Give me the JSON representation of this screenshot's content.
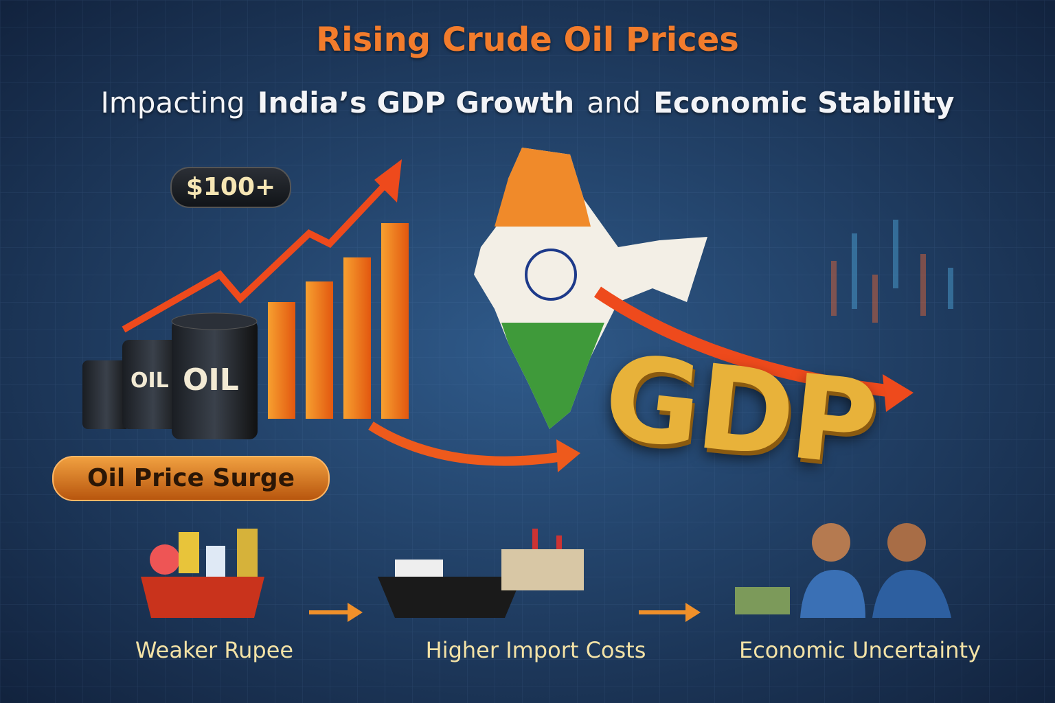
{
  "header": {
    "title": "Rising Crude Oil Prices",
    "subtitle": [
      {
        "text": "Impacting",
        "bold": false
      },
      {
        "text": "India’s GDP Growth",
        "bold": true
      },
      {
        "text": "and",
        "bold": false
      },
      {
        "text": "Economic Stability",
        "bold": true
      }
    ]
  },
  "oil_panel": {
    "badge": "$100+",
    "barrel_labels": [
      "OIL",
      "OIL"
    ],
    "caption": "Oil Price Surge"
  },
  "gdp_panel": {
    "label": "GDP"
  },
  "effects": [
    {
      "label": "Weaker Rupee"
    },
    {
      "label": "Higher Import Costs"
    },
    {
      "label": "Economic Uncertainty"
    }
  ]
}
